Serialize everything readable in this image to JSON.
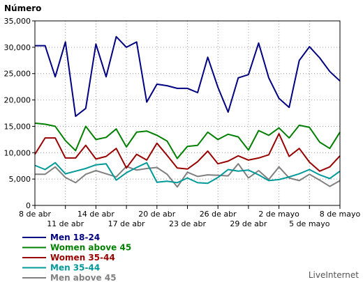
{
  "chart_data": {
    "type": "line",
    "title": "",
    "ylabel": "Número",
    "xlabel": "",
    "ylim": [
      0,
      35000
    ],
    "y_ticks": [
      "0",
      "5,000",
      "10,000",
      "15,000",
      "20,000",
      "25,000",
      "30,000",
      "35,000"
    ],
    "y_tick_values": [
      0,
      5000,
      10000,
      15000,
      20000,
      25000,
      30000,
      35000
    ],
    "grid": true,
    "legend_position": "bottom-left",
    "x": [
      "8 de abr",
      "9 de abr",
      "10 de abr",
      "11 de abr",
      "12 de abr",
      "13 de abr",
      "14 de abr",
      "15 de abr",
      "16 de abr",
      "17 de abr",
      "18 de abr",
      "19 de abr",
      "20 de abr",
      "21 de abr",
      "22 de abr",
      "23 de abr",
      "24 de abr",
      "25 de abr",
      "26 de abr",
      "27 de abr",
      "28 de abr",
      "29 de abr",
      "30 de abr",
      "1 de mayo",
      "2 de mayo",
      "3 de mayo",
      "4 de mayo",
      "5 de mayo",
      "6 de mayo",
      "7 de mayo",
      "8 de mayo"
    ],
    "x_tick_labels": [
      {
        "index": 0,
        "label": "8 de abr",
        "row": 1
      },
      {
        "index": 3,
        "label": "11 de abr",
        "row": 2
      },
      {
        "index": 6,
        "label": "14 de abr",
        "row": 1
      },
      {
        "index": 9,
        "label": "17 de abr",
        "row": 2
      },
      {
        "index": 12,
        "label": "20 de abr",
        "row": 1
      },
      {
        "index": 15,
        "label": "23 de abr",
        "row": 2
      },
      {
        "index": 18,
        "label": "26 de abr",
        "row": 1
      },
      {
        "index": 21,
        "label": "29 de abr",
        "row": 2
      },
      {
        "index": 24,
        "label": "2 de mayo",
        "row": 1
      },
      {
        "index": 27,
        "label": "5 de mayo",
        "row": 2
      },
      {
        "index": 30,
        "label": "8 de mayo",
        "row": 1
      }
    ],
    "series": [
      {
        "name": "Men 18-24",
        "color": "#000080",
        "values": [
          30300,
          30300,
          24400,
          31000,
          16900,
          18400,
          30600,
          24400,
          32000,
          30000,
          31000,
          19600,
          23000,
          22700,
          22200,
          22200,
          21400,
          28100,
          22400,
          17700,
          24200,
          24800,
          30800,
          24200,
          20300,
          18600,
          27500,
          30100,
          28000,
          25400,
          23600
        ]
      },
      {
        "name": "Women above 45",
        "color": "#008000",
        "values": [
          15600,
          15400,
          15000,
          12300,
          10400,
          15000,
          12500,
          12900,
          14500,
          11100,
          13900,
          14100,
          13300,
          12200,
          8900,
          11200,
          11400,
          13900,
          12500,
          13500,
          13000,
          10500,
          14200,
          13300,
          14700,
          12800,
          15200,
          14800,
          12000,
          10800,
          13900
        ]
      },
      {
        "name": "Women 35-44",
        "color": "#990000",
        "values": [
          9700,
          12800,
          12800,
          9000,
          9000,
          11400,
          8800,
          9300,
          10800,
          7100,
          9700,
          8600,
          11800,
          9500,
          7100,
          6900,
          8300,
          10300,
          7900,
          8400,
          9400,
          8600,
          9000,
          9600,
          13600,
          9300,
          10800,
          8200,
          6500,
          7300,
          9400
        ]
      },
      {
        "name": "Men 35-44",
        "color": "#009999",
        "values": [
          7600,
          6800,
          8100,
          6000,
          6500,
          7000,
          7700,
          7900,
          4800,
          6200,
          7200,
          8100,
          4400,
          4600,
          4300,
          5200,
          4300,
          4200,
          5300,
          6800,
          6500,
          6700,
          5800,
          4700,
          4900,
          5400,
          6000,
          6800,
          5800,
          5100,
          6500
        ]
      },
      {
        "name": "Men above 45",
        "color": "#808080",
        "values": [
          5900,
          5900,
          7300,
          5300,
          4300,
          5900,
          6600,
          6000,
          5400,
          7400,
          6700,
          7000,
          7200,
          5900,
          3500,
          6300,
          5500,
          5800,
          5700,
          5600,
          7900,
          5200,
          6600,
          4900,
          7300,
          5200,
          4700,
          5900,
          4800,
          3600,
          4700
        ]
      }
    ]
  },
  "footer": {
    "credit": "LiveInternet"
  }
}
